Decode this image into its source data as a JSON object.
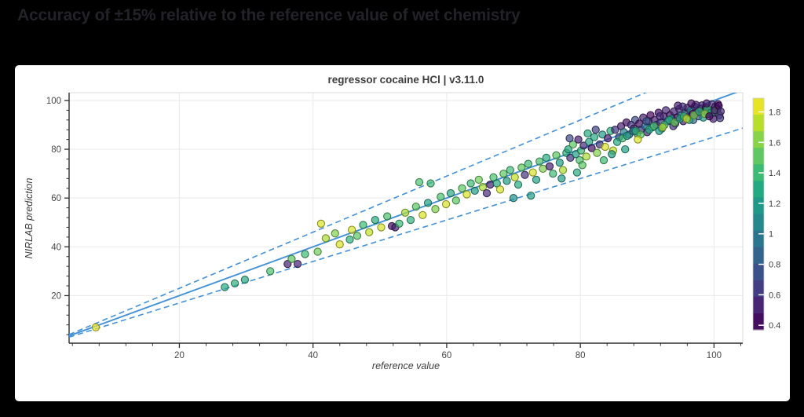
{
  "page": {
    "title": "Accuracy of ±15% relative to the reference value of wet chemistry",
    "background_color": "#000000",
    "title_color": "#232228"
  },
  "panel": {
    "background_color": "#ffffff"
  },
  "chart_data": {
    "type": "scatter",
    "title": "regressor cocaine HCl | v3.11.0",
    "xlabel": "reference value",
    "ylabel": "NIRLAB prediction",
    "xlim": [
      3.5,
      104.3
    ],
    "ylim": [
      0.5,
      103.2
    ],
    "x_ticks": [
      20,
      40,
      60,
      80,
      100
    ],
    "y_ticks": [
      20,
      40,
      60,
      80,
      100
    ],
    "minor_tick_step": 4,
    "grid": true,
    "grid_color": "#e9e9e9",
    "spine_dark_color": "#2f2f2f",
    "spine_light_color": "#d9d9d9",
    "line_color": "#4391d7",
    "identity_line": {
      "slope": 1.0,
      "style": "solid"
    },
    "tolerance_band": {
      "upper_slope": 1.15,
      "lower_slope": 0.85,
      "style": "dashed"
    },
    "colorbar": {
      "colormap": "viridis",
      "min": 0.37,
      "max": 1.89,
      "segments": 14,
      "ticks": [
        0.4,
        0.6,
        0.8,
        1,
        1.2,
        1.4,
        1.6,
        1.8
      ]
    },
    "viridis_anchors": [
      "#440154",
      "#482475",
      "#414487",
      "#355f8d",
      "#2a788e",
      "#21918c",
      "#22a884",
      "#44bf70",
      "#7ad151",
      "#bddf26",
      "#fde725"
    ],
    "points": [
      [
        7.5,
        7,
        1.85
      ],
      [
        26.8,
        23.5,
        1.3
      ],
      [
        28.3,
        25,
        1.33
      ],
      [
        29.8,
        26.5,
        1.3
      ],
      [
        33.6,
        30,
        1.45
      ],
      [
        36.2,
        33,
        0.5
      ],
      [
        37.7,
        33,
        0.52
      ],
      [
        36.8,
        35,
        1.5
      ],
      [
        38.8,
        37,
        1.4
      ],
      [
        40.7,
        38,
        1.55
      ],
      [
        41.2,
        49.5,
        1.8
      ],
      [
        41.9,
        43.5,
        1.7
      ],
      [
        43.3,
        45.5,
        1.6
      ],
      [
        44,
        41,
        1.8
      ],
      [
        45.5,
        43,
        1.35
      ],
      [
        45.8,
        47,
        1.8
      ],
      [
        46.6,
        44.5,
        1.5
      ],
      [
        47.5,
        49,
        1.4
      ],
      [
        48.4,
        46,
        1.75
      ],
      [
        49.3,
        51,
        1.3
      ],
      [
        50.2,
        48,
        1.8
      ],
      [
        51.1,
        52.5,
        1.45
      ],
      [
        51.8,
        48.5,
        0.45
      ],
      [
        52.3,
        48,
        0.5
      ],
      [
        52.9,
        49.5,
        1.4
      ],
      [
        53.8,
        54,
        1.7
      ],
      [
        54.6,
        51,
        1.35
      ],
      [
        55.4,
        56.5,
        1.5
      ],
      [
        55.9,
        66.5,
        1.45
      ],
      [
        56.4,
        53,
        1.8
      ],
      [
        57.2,
        58,
        1.25
      ],
      [
        57.6,
        66,
        1.4
      ],
      [
        58.3,
        55.5,
        1.6
      ],
      [
        59.1,
        60.5,
        1.45
      ],
      [
        59.9,
        57.5,
        1.8
      ],
      [
        60.6,
        62,
        1.3
      ],
      [
        61.4,
        59,
        1.5
      ],
      [
        62.3,
        64,
        1.5
      ],
      [
        63,
        61.5,
        1.8
      ],
      [
        63.6,
        66,
        1.4
      ],
      [
        64.2,
        63,
        1.2
      ],
      [
        64.8,
        67.5,
        1.55
      ],
      [
        65.4,
        64.5,
        1.7
      ],
      [
        66,
        62,
        0.55
      ],
      [
        66.5,
        65.5,
        0.5
      ],
      [
        67,
        68.5,
        1.45
      ],
      [
        67.5,
        66,
        1.3
      ],
      [
        68,
        63.5,
        1.8
      ],
      [
        68.5,
        70,
        1.5
      ],
      [
        69,
        67,
        1.2
      ],
      [
        69.5,
        71.5,
        1.4
      ],
      [
        70,
        60,
        1.15
      ],
      [
        70.2,
        68.5,
        1.75
      ],
      [
        70.7,
        65.5,
        1.3
      ],
      [
        71.2,
        72.5,
        1.5
      ],
      [
        71.7,
        69.5,
        0.6
      ],
      [
        72.2,
        74,
        1.4
      ],
      [
        72.6,
        61,
        1.2
      ],
      [
        72.9,
        70.5,
        1.8
      ],
      [
        73.4,
        67.5,
        1.25
      ],
      [
        73.9,
        75,
        1.45
      ],
      [
        74.4,
        72,
        1.6
      ],
      [
        74.9,
        76.5,
        1.3
      ],
      [
        75.4,
        73,
        0.5
      ],
      [
        75.9,
        70,
        1.4
      ],
      [
        76.4,
        77.5,
        1.5
      ],
      [
        76.9,
        74.5,
        1.2
      ],
      [
        77.4,
        71.5,
        1.7
      ],
      [
        77.9,
        78.5,
        1.35
      ],
      [
        77.2,
        68,
        1.2
      ],
      [
        78.2,
        80,
        1.3
      ],
      [
        78.5,
        76.5,
        0.6
      ],
      [
        78.9,
        82,
        1.5
      ],
      [
        79.3,
        78,
        1.2
      ],
      [
        79.7,
        84,
        0.5
      ],
      [
        80.1,
        79.5,
        1.4
      ],
      [
        80.5,
        81.5,
        0.55
      ],
      [
        80.9,
        77,
        1.7
      ],
      [
        81.3,
        83,
        1.25
      ],
      [
        81.7,
        80.5,
        0.45
      ],
      [
        82.1,
        85,
        1.3
      ],
      [
        82.5,
        78.5,
        1.6
      ],
      [
        82.9,
        82,
        0.6
      ],
      [
        83.3,
        86,
        1.2
      ],
      [
        83.7,
        81,
        1.8
      ],
      [
        84.1,
        84.5,
        0.5
      ],
      [
        84.5,
        87.5,
        1.35
      ],
      [
        84.9,
        79.5,
        1.75
      ],
      [
        82.3,
        88,
        0.65
      ],
      [
        79.9,
        75.5,
        1.45
      ],
      [
        81.1,
        86.5,
        1.3
      ],
      [
        78.4,
        84.5,
        0.7
      ],
      [
        80.3,
        73.5,
        1.5
      ],
      [
        83.5,
        75.5,
        1.4
      ],
      [
        79.5,
        70.5,
        1.3
      ],
      [
        84.7,
        78,
        1.2
      ],
      [
        85.2,
        88,
        0.6
      ],
      [
        85.8,
        85,
        0.7
      ],
      [
        86.1,
        89.5,
        0.5
      ],
      [
        86.5,
        87,
        1.0
      ],
      [
        86.9,
        91,
        0.45
      ],
      [
        87.3,
        86,
        0.8
      ],
      [
        87.6,
        90,
        0.6
      ],
      [
        88,
        88.5,
        0.5
      ],
      [
        88.2,
        92,
        0.7
      ],
      [
        88.5,
        86.5,
        1.1
      ],
      [
        88.8,
        90.5,
        0.45
      ],
      [
        89.1,
        88,
        0.6
      ],
      [
        89.4,
        93,
        0.5
      ],
      [
        89.7,
        89.5,
        0.9
      ],
      [
        90,
        87,
        0.55
      ],
      [
        90.2,
        91.5,
        0.65
      ],
      [
        90.5,
        94,
        0.4
      ],
      [
        90.8,
        89,
        1.2
      ],
      [
        91.1,
        92,
        0.5
      ],
      [
        91.4,
        90,
        0.7
      ],
      [
        91.7,
        95,
        0.45
      ],
      [
        92,
        91,
        0.6
      ],
      [
        92.2,
        88.5,
        1.0
      ],
      [
        92.5,
        93.5,
        0.5
      ],
      [
        92.8,
        96,
        0.55
      ],
      [
        93.1,
        91.5,
        0.8
      ],
      [
        93.4,
        94,
        0.45
      ],
      [
        93.7,
        92.5,
        1.15
      ],
      [
        94,
        95.5,
        0.5
      ],
      [
        94.2,
        90.5,
        0.65
      ],
      [
        94.5,
        93,
        0.4
      ],
      [
        94.8,
        96.5,
        0.6
      ],
      [
        95.1,
        94,
        0.9
      ],
      [
        95.4,
        91.5,
        0.5
      ],
      [
        95.7,
        95,
        0.7
      ],
      [
        96,
        97,
        0.45
      ],
      [
        96.2,
        93.5,
        0.55
      ],
      [
        96.5,
        96,
        1.05
      ],
      [
        96.8,
        94.5,
        0.4
      ],
      [
        97.1,
        97.5,
        0.6
      ],
      [
        97.4,
        95,
        0.5
      ],
      [
        97.7,
        93.5,
        0.75
      ],
      [
        98,
        96.5,
        0.45
      ],
      [
        98.2,
        98,
        0.55
      ],
      [
        98.5,
        95.5,
        0.65
      ],
      [
        98.8,
        97,
        0.4
      ],
      [
        99.1,
        94.5,
        0.9
      ],
      [
        99.4,
        96,
        0.5
      ],
      [
        99.7,
        98.5,
        0.6
      ],
      [
        100,
        95,
        0.45
      ],
      [
        100.2,
        97.5,
        0.55
      ],
      [
        100.5,
        96.5,
        0.4
      ],
      [
        100.8,
        94,
        0.7
      ],
      [
        99.9,
        92.5,
        0.5
      ],
      [
        100.6,
        98.5,
        0.45
      ],
      [
        96.9,
        92,
        0.85
      ],
      [
        93.9,
        89.5,
        0.6
      ],
      [
        91.9,
        93.5,
        0.55
      ],
      [
        89.9,
        91.5,
        0.75
      ],
      [
        87.9,
        87.5,
        0.95
      ],
      [
        85.5,
        83,
        1.3
      ],
      [
        86.3,
        84.5,
        1.4
      ],
      [
        87,
        85.5,
        1.25
      ],
      [
        88.3,
        87.5,
        1.35
      ],
      [
        89,
        86,
        1.5
      ],
      [
        90.3,
        88,
        1.3
      ],
      [
        91,
        89.5,
        1.45
      ],
      [
        91.8,
        87.5,
        1.2
      ],
      [
        92.6,
        90,
        1.4
      ],
      [
        93.3,
        92,
        1.3
      ],
      [
        94.1,
        91,
        1.55
      ],
      [
        94.9,
        92.5,
        1.25
      ],
      [
        95.5,
        93.5,
        1.4
      ],
      [
        96.3,
        92,
        1.3
      ],
      [
        97,
        94,
        1.6
      ],
      [
        97.8,
        95.5,
        1.35
      ],
      [
        98.4,
        93,
        1.2
      ],
      [
        99,
        96.5,
        1.4
      ],
      [
        99.6,
        95,
        1.3
      ],
      [
        100.3,
        96,
        1.5
      ],
      [
        86.7,
        80,
        1.25
      ],
      [
        88.6,
        84,
        1.8
      ],
      [
        92.3,
        89,
        1.7
      ],
      [
        95.9,
        92.5,
        1.75
      ],
      [
        98.6,
        94.5,
        1.65
      ],
      [
        99.3,
        93.5,
        0.42
      ],
      [
        100.1,
        96,
        0.5
      ],
      [
        100.7,
        97.8,
        0.42
      ],
      [
        101,
        95.5,
        0.55
      ],
      [
        100.9,
        92.8,
        0.6
      ],
      [
        98.9,
        98.8,
        0.48
      ],
      [
        97.3,
        98.2,
        0.52
      ],
      [
        96.6,
        98.8,
        0.45
      ],
      [
        95.3,
        97.5,
        0.6
      ],
      [
        94.6,
        97.9,
        0.5
      ]
    ]
  }
}
